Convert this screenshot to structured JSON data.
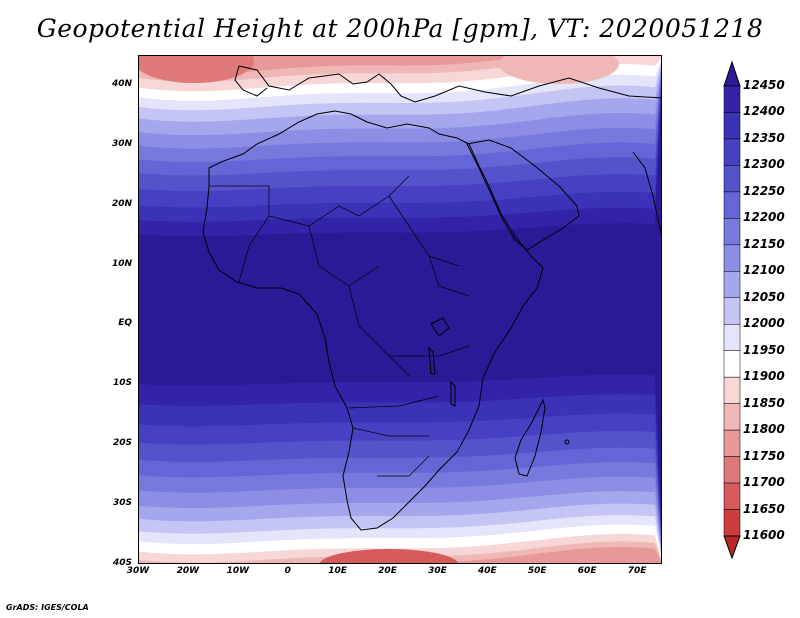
{
  "title": "Geopotential Height at 200hPa [gpm], VT: 2020051218",
  "credit": "GrADS: IGES/COLA",
  "map": {
    "lon_range": [
      -30,
      75
    ],
    "lat_range": [
      -40,
      45
    ],
    "lat_labels": [
      "40N",
      "30N",
      "20N",
      "10N",
      "EQ",
      "10S",
      "20S",
      "30S",
      "40S"
    ],
    "lon_labels": [
      "30W",
      "20W",
      "10W",
      "0",
      "10E",
      "20E",
      "30E",
      "40E",
      "50E",
      "60E",
      "70E"
    ],
    "colorbar_levels": [
      "12450",
      "12400",
      "12350",
      "12300",
      "12250",
      "12200",
      "12150",
      "12100",
      "12050",
      "12000",
      "11950",
      "11900",
      "11850",
      "11800",
      "11750",
      "11700",
      "11650",
      "11600"
    ],
    "colors": [
      "#2b1a95",
      "#3223a8",
      "#3b32b8",
      "#4641c3",
      "#5453cc",
      "#6466d5",
      "#7779dd",
      "#8c8de4",
      "#a5a6ec",
      "#c4c5f4",
      "#e4e4fa",
      "#ffffff",
      "#f6d6d6",
      "#f0b7b7",
      "#e89898",
      "#df7878",
      "#d65a5a",
      "#cc3e3e",
      "#b82626"
    ],
    "cyclone_icon": "tropical-cyclone-icon"
  }
}
